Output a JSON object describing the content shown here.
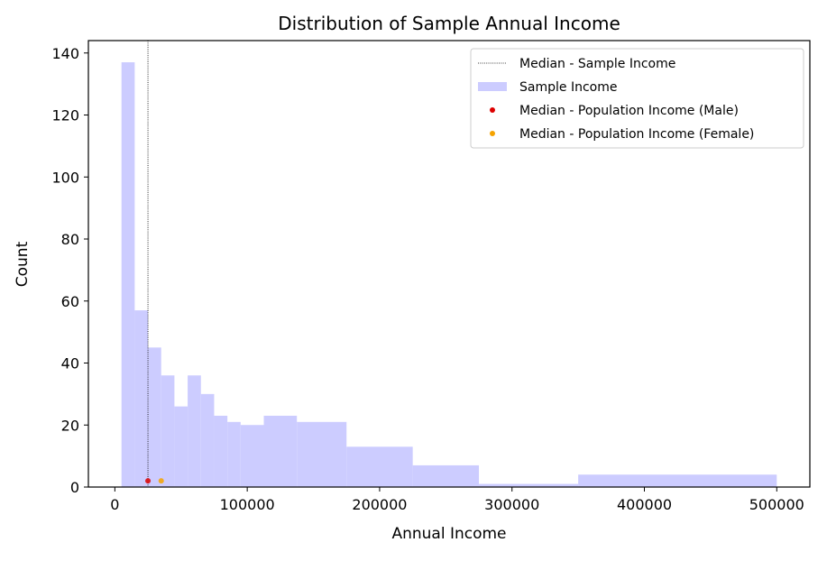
{
  "chart_data": {
    "type": "histogram",
    "title": "Distribution of Sample Annual Income",
    "xlabel": "Annual Income",
    "ylabel": "Count",
    "xlim": [
      -20000,
      525000
    ],
    "ylim": [
      0,
      144
    ],
    "xticks": [
      0,
      100000,
      200000,
      300000,
      400000,
      500000
    ],
    "yticks": [
      0,
      20,
      40,
      60,
      80,
      100,
      120,
      140
    ],
    "legend_position": "top-right",
    "series": [
      {
        "name": "Sample Income",
        "kind": "histogram",
        "color": "#ccccff",
        "bins": [
          {
            "x0": 5000,
            "x1": 15000,
            "count": 137
          },
          {
            "x0": 15000,
            "x1": 25000,
            "count": 57
          },
          {
            "x0": 25000,
            "x1": 35000,
            "count": 45
          },
          {
            "x0": 35000,
            "x1": 45000,
            "count": 36
          },
          {
            "x0": 45000,
            "x1": 55000,
            "count": 26
          },
          {
            "x0": 55000,
            "x1": 65000,
            "count": 36
          },
          {
            "x0": 65000,
            "x1": 75000,
            "count": 30
          },
          {
            "x0": 75000,
            "x1": 85000,
            "count": 23
          },
          {
            "x0": 85000,
            "x1": 95000,
            "count": 21
          },
          {
            "x0": 95000,
            "x1": 112500,
            "count": 20
          },
          {
            "x0": 112500,
            "x1": 137500,
            "count": 23
          },
          {
            "x0": 137500,
            "x1": 175000,
            "count": 21
          },
          {
            "x0": 175000,
            "x1": 225000,
            "count": 13
          },
          {
            "x0": 225000,
            "x1": 275000,
            "count": 7
          },
          {
            "x0": 275000,
            "x1": 350000,
            "count": 1
          },
          {
            "x0": 350000,
            "x1": 500000,
            "count": 4
          }
        ]
      },
      {
        "name": "Median - Sample Income",
        "kind": "vline",
        "x": 25000,
        "color": "#000000",
        "linestyle": "dotted"
      },
      {
        "name": "Median - Population Income (Male)",
        "kind": "point",
        "x": 25000,
        "y": 2,
        "color": "#dd0000"
      },
      {
        "name": "Median - Population Income (Female)",
        "kind": "point",
        "x": 35000,
        "y": 2,
        "color": "#f5a300"
      }
    ]
  }
}
